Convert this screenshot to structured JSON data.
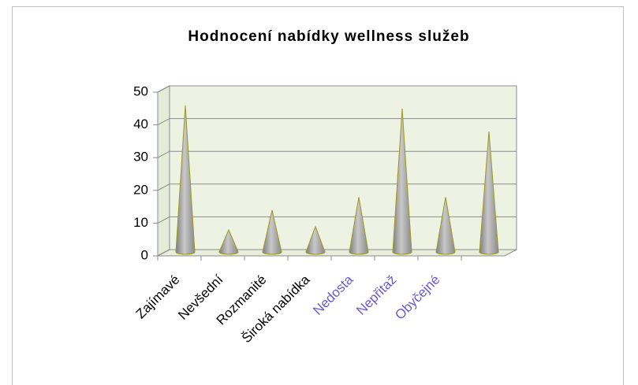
{
  "chart_data": {
    "type": "cone",
    "title": "Hodnocení nabídky wellness služeb",
    "categories": [
      "Zajímavé",
      "Nevšední",
      "Rozmanité",
      "Široká nabídka",
      "Nedosta",
      "Nepřitaž",
      "Obyčejné",
      null
    ],
    "values": [
      45,
      7,
      13,
      8,
      17,
      44,
      17,
      37
    ],
    "color": "#a6a6a6",
    "ylim": [
      0,
      50
    ],
    "yticks": [
      0,
      10,
      20,
      30,
      40,
      50
    ],
    "grid": true
  }
}
